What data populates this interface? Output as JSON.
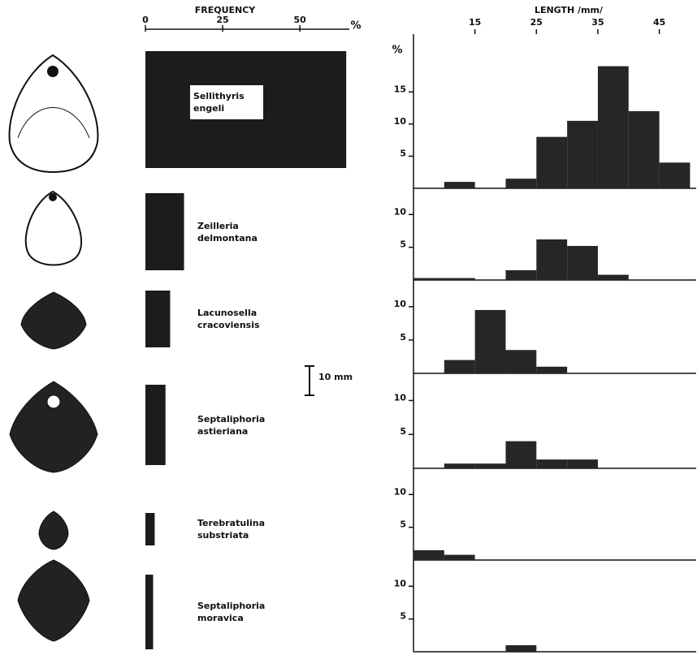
{
  "chart_data": [
    {
      "type": "hbar",
      "title": "FREQUENCY",
      "unit_label": "%",
      "annotation": "10 mm",
      "categories": [
        "Sellithyris engeli",
        "Zeilleria delmontana",
        "Lacunosella cracoviensis",
        "Septaliphoria astieriana",
        "Terebratulina substriata",
        "Septaliphoria moravica"
      ],
      "values": [
        65,
        12.5,
        8,
        6.5,
        3,
        2.5
      ],
      "color": "#1c1c1c",
      "xlim": [
        0,
        66
      ],
      "xticks": [
        0,
        25,
        50
      ]
    },
    {
      "type": "histogram",
      "title": "LENGTH /mm/",
      "unit_label": "%",
      "bins": [
        5,
        10,
        15,
        20,
        25,
        30,
        35,
        40,
        45,
        50
      ],
      "values": [
        0,
        1,
        0,
        1.5,
        8,
        10.5,
        19,
        12,
        4
      ],
      "color": "#262626",
      "xlim": [
        5,
        51
      ],
      "xticks": [
        15,
        25,
        35,
        45
      ],
      "ylim": [
        0,
        24
      ],
      "yticks": [
        5,
        10,
        15
      ]
    },
    {
      "type": "histogram",
      "bins": [
        5,
        10,
        15,
        20,
        25,
        30,
        35,
        40,
        45,
        50
      ],
      "values": [
        0.3,
        0.3,
        0,
        1.5,
        6.2,
        5.2,
        0.8,
        0,
        0
      ],
      "color": "#262626",
      "xlim": [
        5,
        51
      ],
      "ylim": [
        0,
        14
      ],
      "yticks": [
        5,
        10
      ]
    },
    {
      "type": "histogram",
      "bins": [
        5,
        10,
        15,
        20,
        25,
        30,
        35,
        40,
        45,
        50
      ],
      "values": [
        0,
        2,
        9.5,
        3.5,
        1,
        0,
        0,
        0,
        0
      ],
      "color": "#262626",
      "xlim": [
        5,
        51
      ],
      "ylim": [
        0,
        14
      ],
      "yticks": [
        5,
        10
      ]
    },
    {
      "type": "histogram",
      "bins": [
        5,
        10,
        15,
        20,
        25,
        30,
        35,
        40,
        45,
        50
      ],
      "values": [
        0,
        0.7,
        0.7,
        4,
        1.3,
        1.3,
        0,
        0,
        0
      ],
      "color": "#262626",
      "xlim": [
        5,
        51
      ],
      "ylim": [
        0,
        14
      ],
      "yticks": [
        5,
        10
      ]
    },
    {
      "type": "histogram",
      "bins": [
        5,
        10,
        15,
        20,
        25,
        30,
        35,
        40,
        45,
        50
      ],
      "values": [
        1.5,
        0.8,
        0,
        0,
        0,
        0,
        0,
        0,
        0
      ],
      "color": "#262626",
      "xlim": [
        5,
        51
      ],
      "ylim": [
        0,
        14
      ],
      "yticks": [
        5,
        10
      ]
    },
    {
      "type": "histogram",
      "bins": [
        5,
        10,
        15,
        20,
        25,
        30,
        35,
        40,
        45,
        50
      ],
      "values": [
        0,
        0,
        0,
        1,
        0,
        0,
        0,
        0,
        0
      ],
      "color": "#262626",
      "xlim": [
        5,
        51
      ],
      "ylim": [
        0,
        14
      ],
      "yticks": [
        5,
        10
      ]
    }
  ]
}
